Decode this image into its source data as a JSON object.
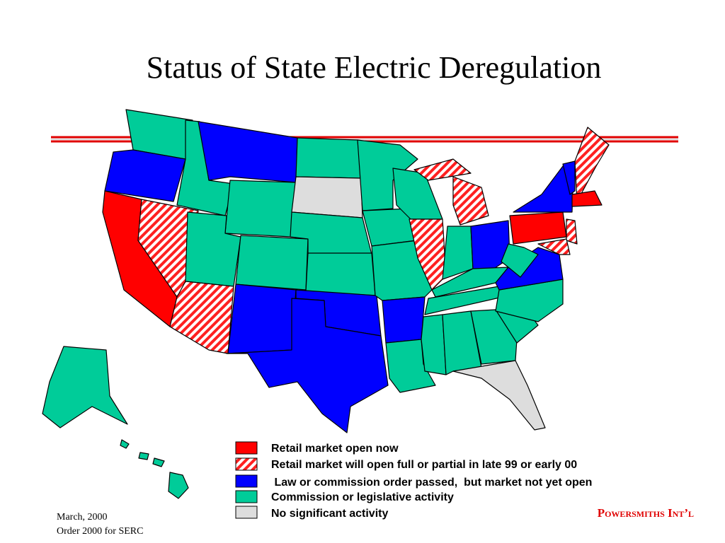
{
  "title": "Status of State Electric Deregulation",
  "legend": [
    {
      "label": "Retail market open now"
    },
    {
      "label": "Retail market will open full or partial in late 99 or early 00"
    },
    {
      "label": " Law or commission order passed,  but market not yet open"
    },
    {
      "label": "Commission or legislative activity"
    },
    {
      "label": "No significant activity"
    }
  ],
  "footer": {
    "date": "March, 2000",
    "source": "Order 2000 for SERC",
    "brand": "Powersmiths Int’l"
  }
}
